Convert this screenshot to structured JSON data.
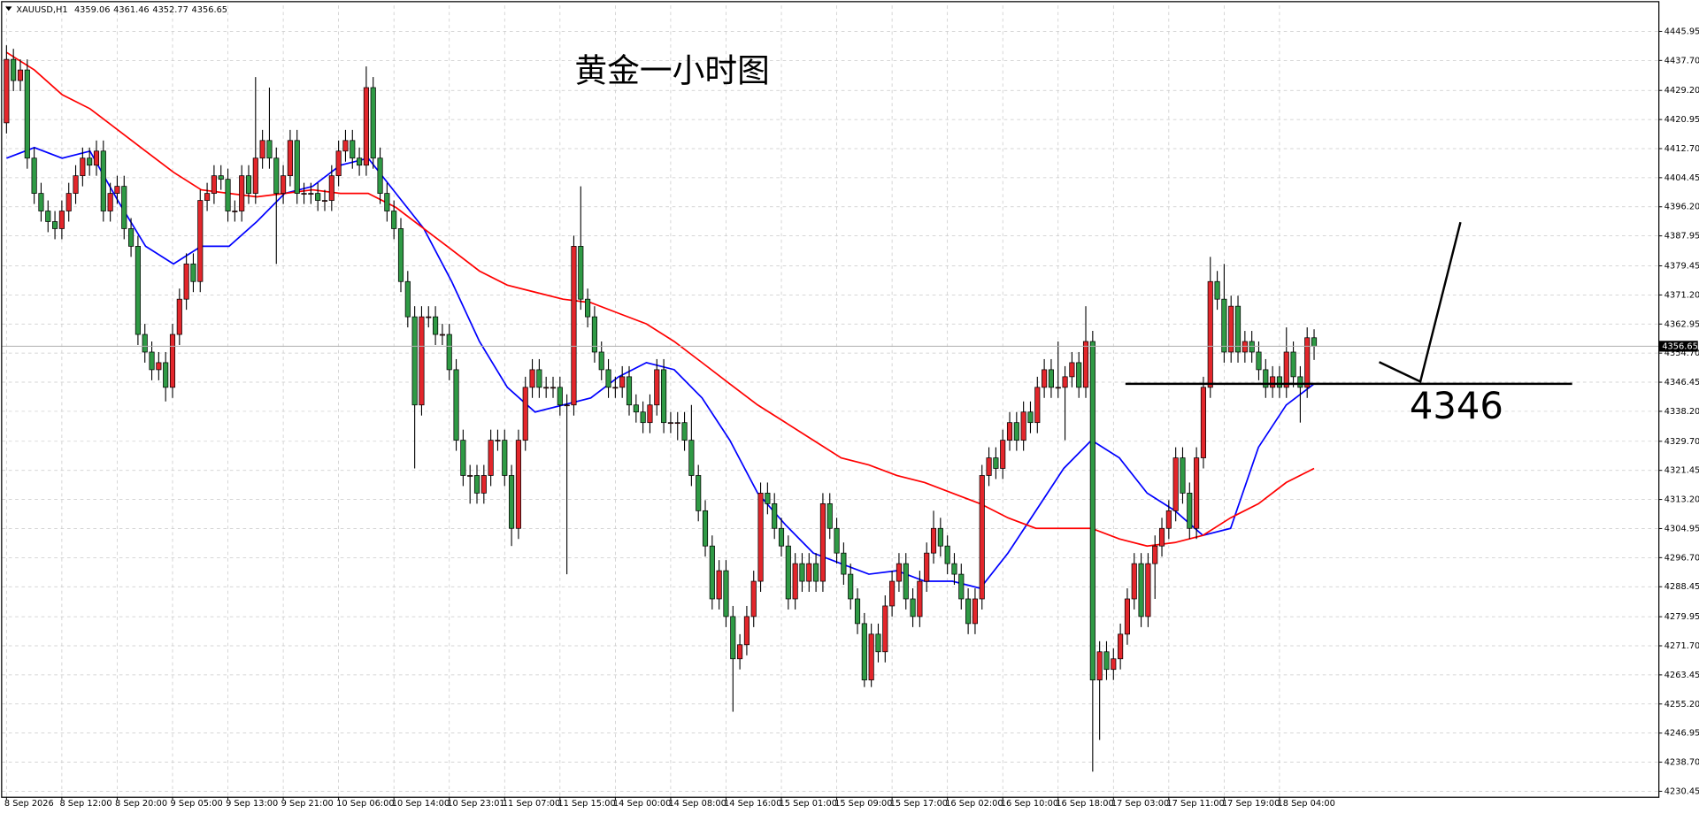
{
  "chart_data": {
    "type": "candlestick",
    "symbol": "XAUUSD,H1",
    "title": "黄金一小时图",
    "categories": [
      "8 Sep 2026",
      null,
      null,
      null,
      null,
      null,
      null,
      null,
      "8 Sep 12:00",
      null,
      null,
      null,
      null,
      null,
      null,
      null,
      "8 Sep 20:00",
      null,
      null,
      null,
      null,
      null,
      null,
      null,
      "9 Sep 05:00",
      null,
      null,
      null,
      null,
      null,
      null,
      null,
      "9 Sep 13:00",
      null,
      null,
      null,
      null,
      null,
      null,
      null,
      "9 Sep 21:00",
      null,
      null,
      null,
      null,
      null,
      null,
      null,
      "10 Sep 06:00",
      null,
      null,
      null,
      null,
      null,
      null,
      null,
      "10 Sep 14:00",
      null,
      null,
      null,
      null,
      null,
      null,
      null,
      "10 Sep 23:01",
      null,
      null,
      null,
      null,
      null,
      null,
      null,
      "11 Sep 07:00",
      null,
      null,
      null,
      null,
      null,
      null,
      null,
      "11 Sep 15:00",
      null,
      null,
      null,
      null,
      null,
      null,
      null,
      "14 Sep 00:00",
      null,
      null,
      null,
      null,
      null,
      null,
      null,
      "14 Sep 08:00",
      null,
      null,
      null,
      null,
      null,
      null,
      null,
      "14 Sep 16:00",
      null,
      null,
      null,
      null,
      null,
      null,
      null,
      "15 Sep 01:00",
      null,
      null,
      null,
      null,
      null,
      null,
      null,
      "15 Sep 09:00",
      null,
      null,
      null,
      null,
      null,
      null,
      null,
      "15 Sep 17:00",
      null,
      null,
      null,
      null,
      null,
      null,
      null,
      "16 Sep 02:00",
      null,
      null,
      null,
      null,
      null,
      null,
      null,
      "16 Sep 10:00",
      null,
      null,
      null,
      null,
      null,
      null,
      null,
      "16 Sep 18:00",
      null,
      null,
      null,
      null,
      null,
      null,
      null,
      "17 Sep 03:00",
      null,
      null,
      null,
      null,
      null,
      null,
      null,
      "17 Sep 11:00",
      null,
      null,
      null,
      null,
      null,
      null,
      null,
      "17 Sep 19:00",
      null,
      null,
      null,
      null,
      null,
      null,
      null,
      "18 Sep 04:00",
      null,
      null,
      null,
      null,
      null
    ],
    "open": [
      4420,
      4438,
      4432,
      4435,
      4410,
      4400,
      4395,
      4392,
      4390,
      4395,
      4400,
      4405,
      4410,
      4408,
      4412,
      4395,
      4400,
      4402,
      4390,
      4385,
      4360,
      4355,
      4350,
      4352,
      4345,
      4360,
      4370,
      4380,
      4375,
      4398,
      4400,
      4405,
      4404,
      4395,
      4395,
      4405,
      4400,
      4410,
      4415,
      4410,
      4400,
      4405,
      4415,
      4400,
      4400,
      4400,
      4398,
      4398,
      4405,
      4412,
      4415,
      4410,
      4408,
      4430,
      4410,
      4400,
      4395,
      4390,
      4375,
      4365,
      4340,
      4365,
      4365,
      4360,
      4360,
      4350,
      4330,
      4320,
      4320,
      4315,
      4320,
      4330,
      4330,
      4320,
      4305,
      4330,
      4345,
      4350,
      4345,
      4345,
      4345,
      4340,
      4340,
      4385,
      4370,
      4365,
      4355,
      4350,
      4345,
      4345,
      4348,
      4340,
      4338,
      4335,
      4340,
      4350,
      4335,
      4335,
      4335,
      4330,
      4320,
      4310,
      4300,
      4285,
      4293,
      4280,
      4268,
      4272,
      4280,
      4290,
      4315,
      4312,
      4305,
      4300,
      4285,
      4295,
      4290,
      4295,
      4290,
      4312,
      4305,
      4298,
      4292,
      4285,
      4278,
      4262,
      4275,
      4270,
      4283,
      4290,
      4295,
      4285,
      4280,
      4290,
      4298,
      4305,
      4300,
      4295,
      4292,
      4285,
      4278,
      4285,
      4320,
      4325,
      4322,
      4330,
      4335,
      4330,
      4338,
      4335,
      4345,
      4350,
      4345,
      4345,
      4348,
      4352,
      4345,
      4358,
      4262,
      4270,
      4265,
      4268,
      4275,
      4285,
      4295,
      4280,
      4295,
      4300,
      4305,
      4310,
      4325,
      4315,
      4305,
      4325,
      4345,
      4375,
      4370,
      4355,
      4368,
      4355,
      4358,
      4355,
      4350,
      4345,
      4348,
      4345,
      4355,
      4348,
      4345,
      4359.06
    ],
    "high": [
      4442,
      4441,
      4438,
      4438,
      4413,
      4403,
      4398,
      4395,
      4398,
      4403,
      4408,
      4413,
      4413,
      4415,
      4415,
      4403,
      4405,
      4405,
      4393,
      4388,
      4363,
      4358,
      4355,
      4355,
      4363,
      4373,
      4383,
      4383,
      4401,
      4403,
      4408,
      4408,
      4407,
      4398,
      4408,
      4408,
      4433,
      4418,
      4430,
      4413,
      4408,
      4418,
      4418,
      4403,
      4403,
      4403,
      4401,
      4408,
      4415,
      4418,
      4418,
      4413,
      4436,
      4433,
      4413,
      4403,
      4398,
      4393,
      4378,
      4368,
      4368,
      4368,
      4368,
      4363,
      4363,
      4353,
      4333,
      4323,
      4323,
      4323,
      4333,
      4333,
      4333,
      4323,
      4333,
      4348,
      4353,
      4353,
      4348,
      4348,
      4348,
      4343,
      4388,
      4402,
      4373,
      4368,
      4358,
      4353,
      4348,
      4351,
      4351,
      4343,
      4341,
      4343,
      4353,
      4353,
      4338,
      4338,
      4338,
      4340,
      4323,
      4313,
      4303,
      4296,
      4296,
      4283,
      4275,
      4283,
      4293,
      4318,
      4318,
      4315,
      4308,
      4303,
      4298,
      4298,
      4298,
      4298,
      4315,
      4315,
      4308,
      4301,
      4295,
      4288,
      4281,
      4278,
      4278,
      4286,
      4293,
      4298,
      4298,
      4288,
      4293,
      4301,
      4310,
      4308,
      4303,
      4298,
      4295,
      4288,
      4288,
      4323,
      4328,
      4328,
      4333,
      4338,
      4338,
      4341,
      4341,
      4348,
      4353,
      4353,
      4358,
      4351,
      4355,
      4355,
      4368,
      4361,
      4273,
      4273,
      4271,
      4278,
      4288,
      4298,
      4298,
      4298,
      4303,
      4308,
      4313,
      4328,
      4328,
      4318,
      4328,
      4348,
      4382,
      4378,
      4380,
      4371,
      4371,
      4361,
      4361,
      4358,
      4353,
      4351,
      4351,
      4362,
      4358,
      4351,
      4362,
      4361.46
    ],
    "low": [
      4417,
      4429,
      4429,
      4407,
      4397,
      4392,
      4389,
      4387,
      4387,
      4392,
      4397,
      4402,
      4405,
      4405,
      4392,
      4392,
      4397,
      4387,
      4382,
      4357,
      4352,
      4347,
      4347,
      4341,
      4342,
      4357,
      4367,
      4372,
      4372,
      4395,
      4397,
      4401,
      4392,
      4392,
      4392,
      4397,
      4397,
      4407,
      4407,
      4380,
      4397,
      4402,
      4397,
      4397,
      4397,
      4395,
      4395,
      4395,
      4402,
      4409,
      4407,
      4405,
      4405,
      4407,
      4397,
      4392,
      4387,
      4372,
      4362,
      4322,
      4337,
      4362,
      4357,
      4357,
      4347,
      4327,
      4317,
      4312,
      4312,
      4312,
      4317,
      4327,
      4317,
      4300,
      4302,
      4327,
      4342,
      4342,
      4342,
      4342,
      4337,
      4292,
      4337,
      4367,
      4362,
      4352,
      4347,
      4342,
      4342,
      4342,
      4337,
      4335,
      4332,
      4332,
      4337,
      4332,
      4332,
      4330,
      4327,
      4317,
      4307,
      4297,
      4282,
      4282,
      4277,
      4253,
      4265,
      4269,
      4277,
      4287,
      4309,
      4302,
      4297,
      4282,
      4282,
      4287,
      4287,
      4287,
      4287,
      4302,
      4295,
      4289,
      4282,
      4275,
      4260,
      4260,
      4267,
      4267,
      4280,
      4287,
      4282,
      4277,
      4277,
      4287,
      4295,
      4297,
      4292,
      4289,
      4282,
      4275,
      4275,
      4282,
      4317,
      4319,
      4319,
      4327,
      4327,
      4327,
      4332,
      4332,
      4342,
      4342,
      4342,
      4330,
      4345,
      4342,
      4342,
      4236,
      4245,
      4262,
      4262,
      4265,
      4272,
      4282,
      4277,
      4277,
      4285,
      4297,
      4302,
      4307,
      4312,
      4302,
      4302,
      4322,
      4342,
      4367,
      4352,
      4352,
      4352,
      4352,
      4352,
      4347,
      4342,
      4342,
      4342,
      4342,
      4345,
      4335,
      4342,
      4352.77
    ],
    "close": [
      4438,
      4432,
      4435,
      4410,
      4400,
      4395,
      4392,
      4390,
      4395,
      4400,
      4405,
      4410,
      4408,
      4412,
      4395,
      4400,
      4402,
      4390,
      4385,
      4360,
      4355,
      4350,
      4352,
      4345,
      4360,
      4370,
      4380,
      4375,
      4398,
      4400,
      4405,
      4404,
      4395,
      4395,
      4405,
      4400,
      4410,
      4415,
      4410,
      4400,
      4405,
      4415,
      4400,
      4400,
      4400,
      4398,
      4398,
      4405,
      4412,
      4415,
      4410,
      4408,
      4430,
      4410,
      4400,
      4395,
      4390,
      4375,
      4365,
      4340,
      4365,
      4365,
      4360,
      4360,
      4350,
      4330,
      4320,
      4320,
      4315,
      4320,
      4330,
      4330,
      4320,
      4305,
      4330,
      4345,
      4350,
      4345,
      4345,
      4345,
      4340,
      4340,
      4385,
      4370,
      4365,
      4355,
      4350,
      4345,
      4345,
      4348,
      4340,
      4338,
      4335,
      4340,
      4350,
      4335,
      4335,
      4335,
      4330,
      4320,
      4310,
      4300,
      4285,
      4293,
      4280,
      4268,
      4272,
      4280,
      4290,
      4315,
      4312,
      4305,
      4300,
      4285,
      4295,
      4290,
      4295,
      4290,
      4312,
      4305,
      4298,
      4292,
      4285,
      4278,
      4262,
      4275,
      4270,
      4283,
      4290,
      4295,
      4285,
      4280,
      4290,
      4298,
      4305,
      4300,
      4295,
      4292,
      4285,
      4278,
      4285,
      4320,
      4325,
      4322,
      4330,
      4335,
      4330,
      4338,
      4335,
      4345,
      4350,
      4345,
      4345,
      4348,
      4352,
      4345,
      4358,
      4262,
      4270,
      4265,
      4268,
      4275,
      4285,
      4295,
      4280,
      4295,
      4300,
      4305,
      4310,
      4325,
      4315,
      4305,
      4325,
      4345,
      4375,
      4370,
      4355,
      4368,
      4355,
      4358,
      4355,
      4350,
      4345,
      4348,
      4345,
      4355,
      4348,
      4345,
      4359.06,
      4356.65
    ],
    "up_color": "#e3262b",
    "down_color": "#2f9a45",
    "moving_averages": [
      {
        "color": "#0000ff",
        "values": [
          4410,
          4413,
          4410,
          4412,
          4398,
          4385,
          4380,
          4385,
          4385,
          4392,
          4400,
          4402,
          4408,
          4410,
          4400,
          4390,
          4375,
          4358,
          4345,
          4338,
          4340,
          4342,
          4348,
          4352,
          4350,
          4342,
          4330,
          4315,
          4306,
          4298,
          4295,
          4292,
          4293,
          4290,
          4290,
          4288,
          4298,
          4310,
          4322,
          4330,
          4325,
          4315,
          4310,
          4303,
          4305,
          4328,
          4340,
          4346
        ]
      },
      {
        "color": "#ff0000",
        "values": [
          4440,
          4435,
          4428,
          4424,
          4418,
          4412,
          4406,
          4401,
          4400,
          4399,
          4400,
          4401,
          4400,
          4400,
          4396,
          4390,
          4384,
          4378,
          4374,
          4372,
          4370,
          4369,
          4366,
          4363,
          4358,
          4352,
          4346,
          4340,
          4335,
          4330,
          4325,
          4323,
          4320,
          4318,
          4315,
          4312,
          4308,
          4305,
          4305,
          4305,
          4302,
          4300,
          4301,
          4303,
          4308,
          4312,
          4318,
          4322
        ]
      }
    ],
    "ylim": [
      4228.9,
      4453.3
    ],
    "yticks": [
      {
        "value": 4445.95,
        "label": "4445.95"
      },
      {
        "value": 4437.7,
        "label": "4437.70"
      },
      {
        "value": 4429.2,
        "label": "4429.20"
      },
      {
        "value": 4420.95,
        "label": "4420.95"
      },
      {
        "value": 4412.7,
        "label": "4412.70"
      },
      {
        "value": 4404.45,
        "label": "4404.45"
      },
      {
        "value": 4396.2,
        "label": "4396.20"
      },
      {
        "value": 4387.95,
        "label": "4387.95"
      },
      {
        "value": 4379.45,
        "label": "4379.45"
      },
      {
        "value": 4371.2,
        "label": "4371.20"
      },
      {
        "value": 4362.95,
        "label": "4362.95"
      },
      {
        "value": 4354.7,
        "label": "4354.70"
      },
      {
        "value": 4346.45,
        "label": "4346.45"
      },
      {
        "value": 4338.2,
        "label": "4338.20"
      },
      {
        "value": 4329.7,
        "label": "4329.70"
      },
      {
        "value": 4321.45,
        "label": "4321.45"
      },
      {
        "value": 4313.2,
        "label": "4313.20"
      },
      {
        "value": 4304.95,
        "label": "4304.95"
      },
      {
        "value": 4296.7,
        "label": "4296.70"
      },
      {
        "value": 4288.45,
        "label": "4288.45"
      },
      {
        "value": 4279.95,
        "label": "4279.95"
      },
      {
        "value": 4271.7,
        "label": "4271.70"
      },
      {
        "value": 4263.45,
        "label": "4263.45"
      },
      {
        "value": 4255.2,
        "label": "4255.20"
      },
      {
        "value": 4246.95,
        "label": "4246.95"
      },
      {
        "value": 4238.7,
        "label": "4238.70"
      },
      {
        "value": 4230.45,
        "label": "4230.45"
      }
    ],
    "grid": true,
    "annotation": {
      "level": 4346
    }
  }
}
